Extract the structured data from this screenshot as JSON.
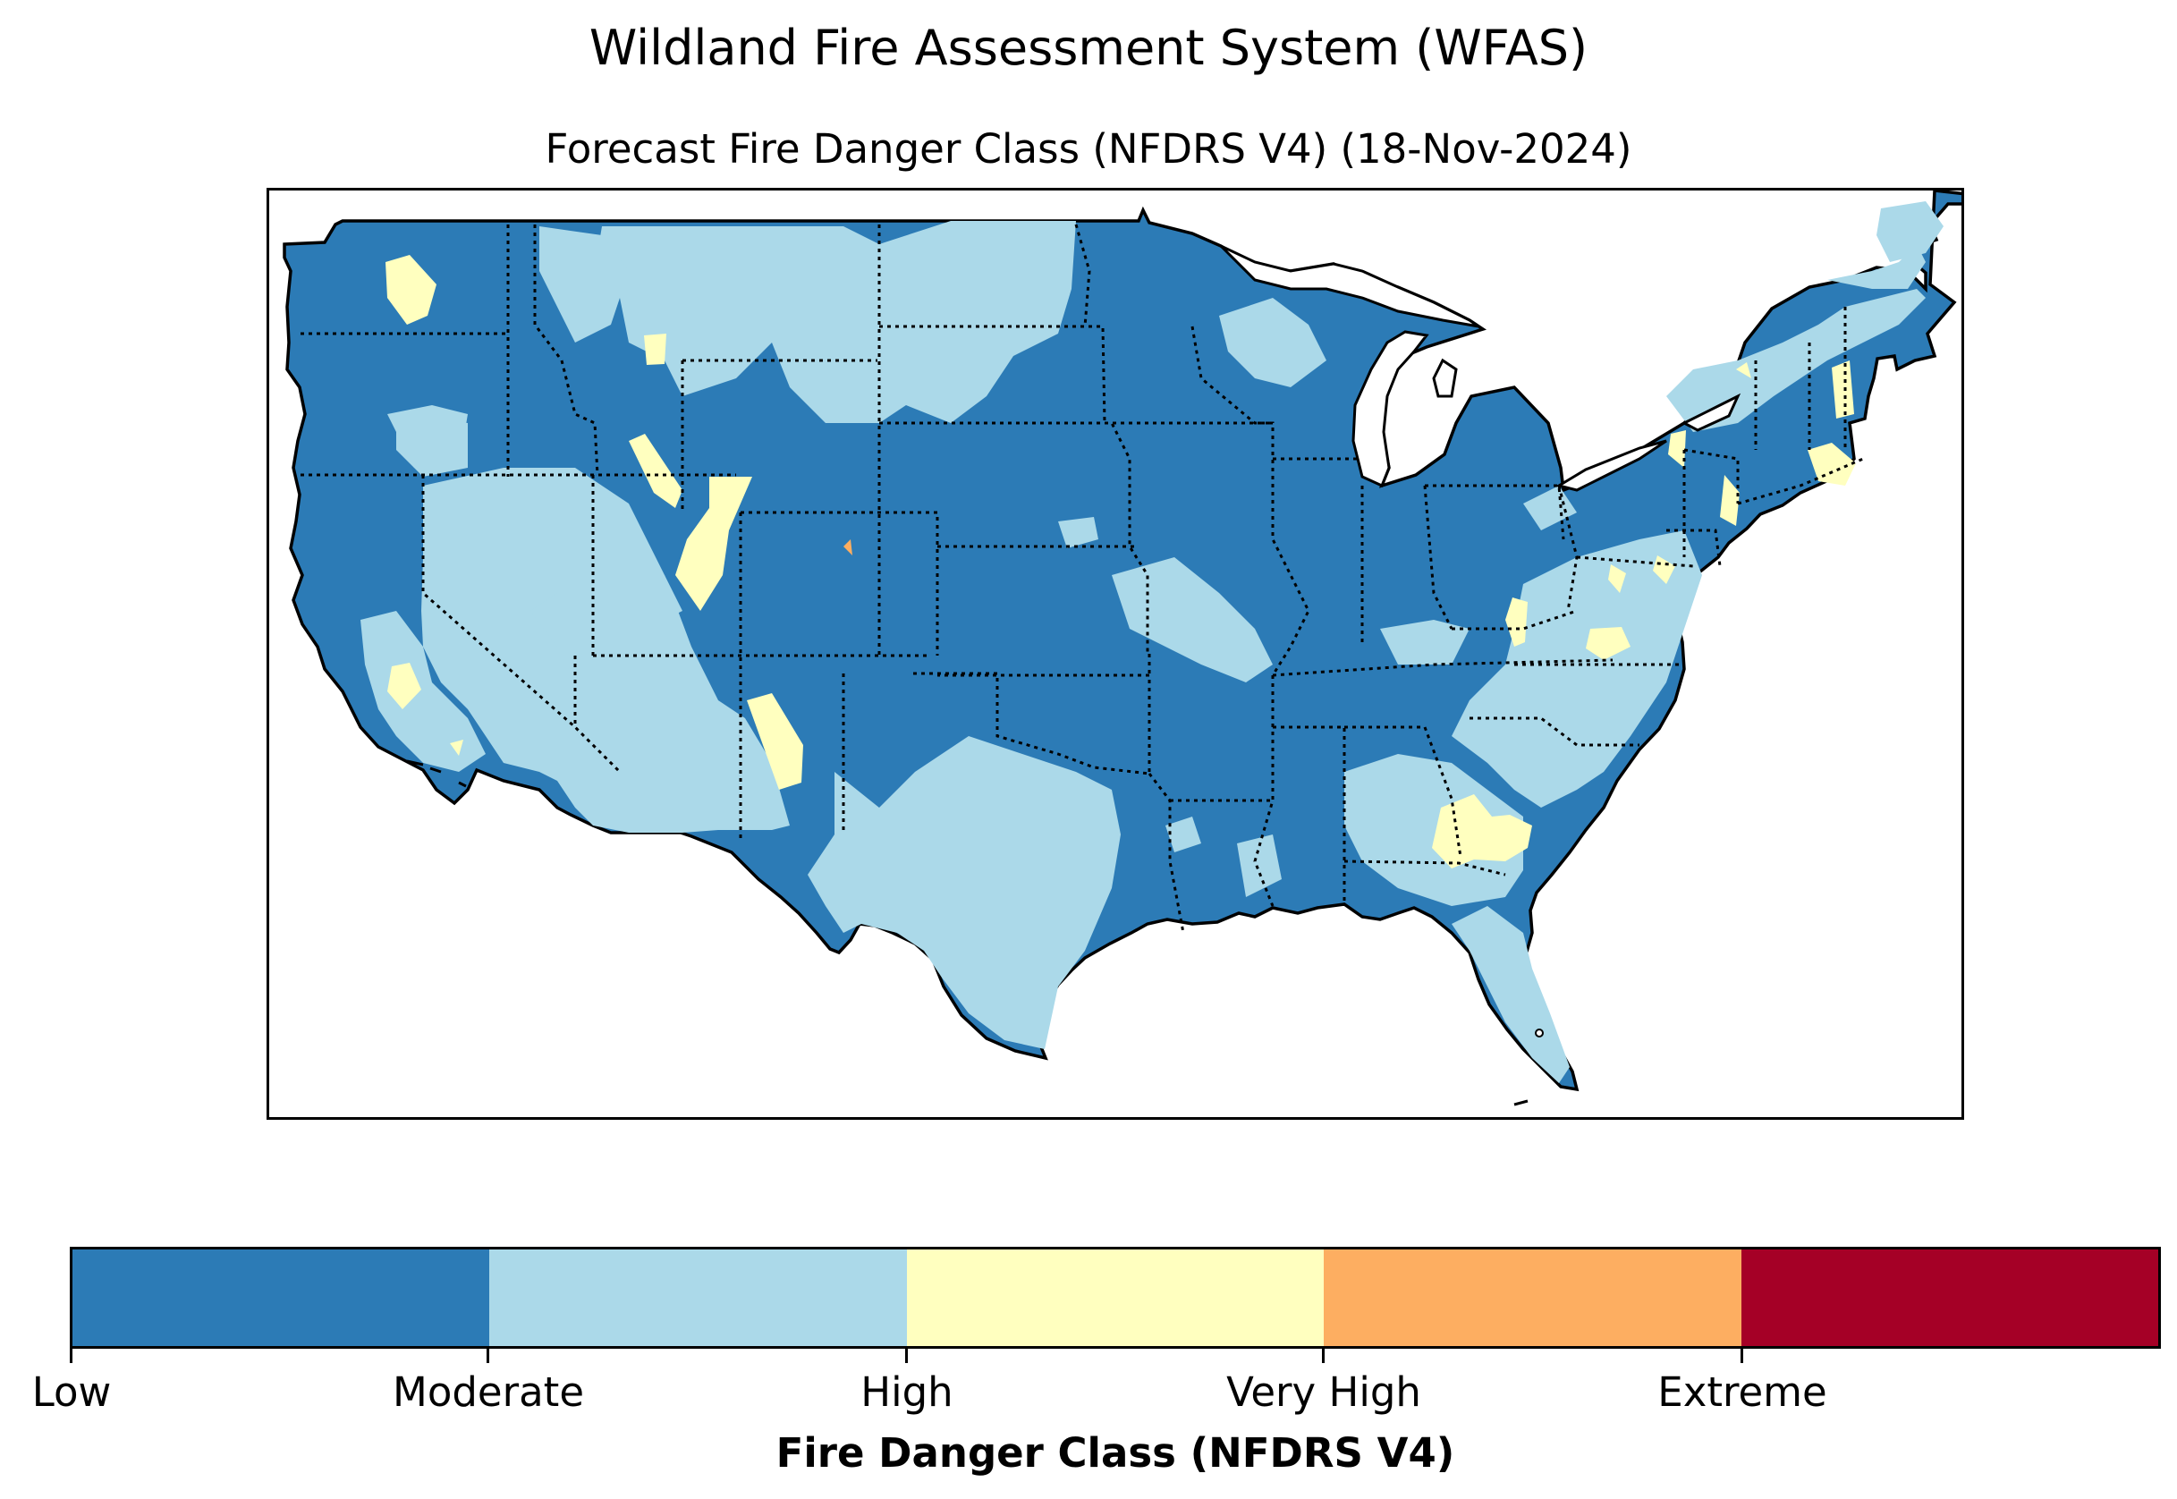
{
  "title": "Wildland Fire Assessment System (WFAS)",
  "subtitle": "Forecast Fire Danger Class (NFDRS V4) (18-Nov-2024)",
  "legend": {
    "label": "Fire Danger Class (NFDRS V4)",
    "classes": [
      {
        "name": "Low",
        "color": "#2c7bb6"
      },
      {
        "name": "Moderate",
        "color": "#abd9e9"
      },
      {
        "name": "High",
        "color": "#ffffbf"
      },
      {
        "name": "Very High",
        "color": "#fdae61"
      },
      {
        "name": "Extreme",
        "color": "#a50026"
      }
    ]
  },
  "colors": {
    "low": "#2c7bb6",
    "moderate": "#abd9e9",
    "high": "#ffffbf",
    "very_high": "#fdae61",
    "extreme": "#a50026"
  }
}
